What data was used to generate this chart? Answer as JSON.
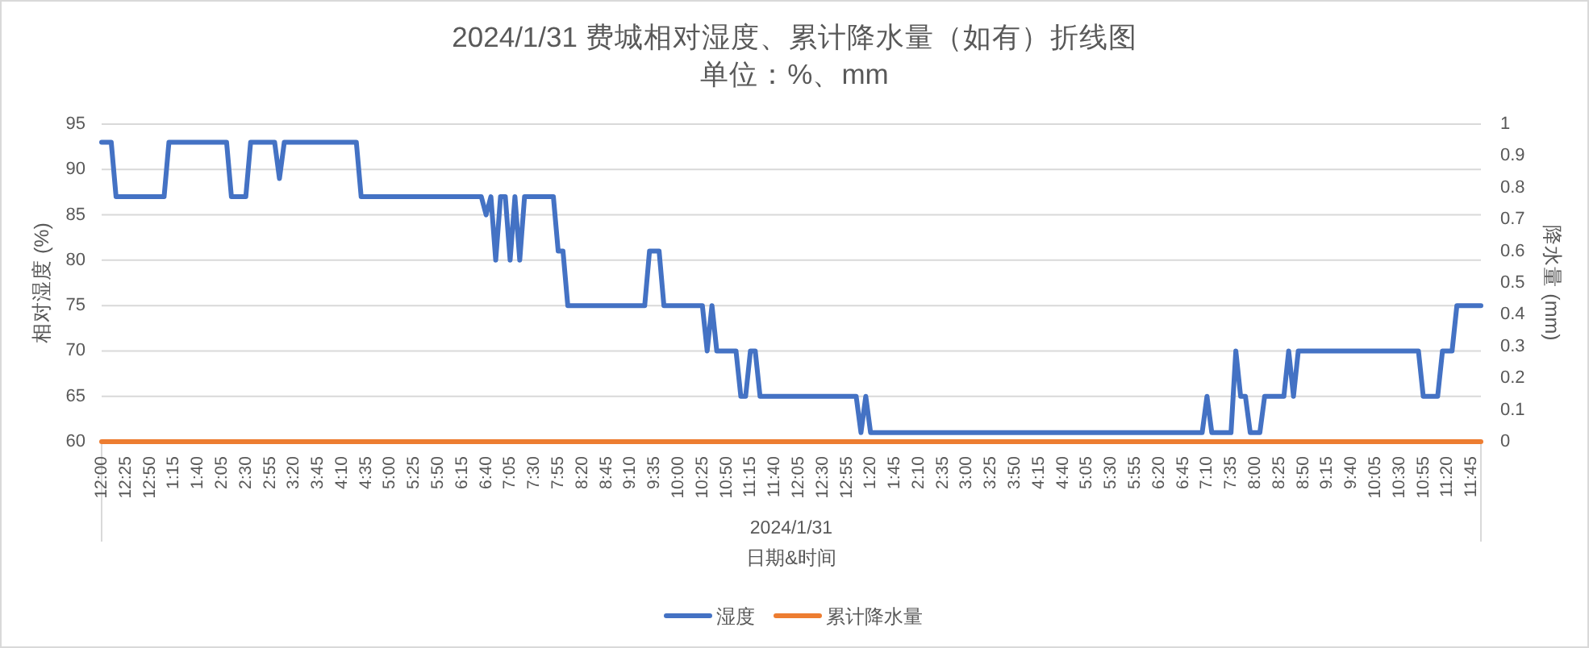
{
  "chart_data": {
    "type": "line",
    "title": "2024/1/31 费城相对湿度、累计降水量（如有）折线图",
    "subtitle": "单位：%、mm",
    "xlabel": "日期&时间",
    "ylabel": "相对湿度 (%)",
    "y2label": "降水量 (mm)",
    "annotations": [
      "2024/1/31"
    ],
    "categories": [
      "12:00",
      null,
      null,
      null,
      null,
      "12:25",
      null,
      null,
      null,
      null,
      "12:50",
      null,
      null,
      null,
      null,
      "1:15",
      null,
      null,
      null,
      null,
      "1:40",
      null,
      null,
      null,
      null,
      "2:05",
      null,
      null,
      null,
      null,
      "2:30",
      null,
      null,
      null,
      null,
      "2:55",
      null,
      null,
      null,
      null,
      "3:20",
      null,
      null,
      null,
      null,
      "3:45",
      null,
      null,
      null,
      null,
      "4:10",
      null,
      null,
      null,
      null,
      "4:35",
      null,
      null,
      null,
      null,
      "5:00",
      null,
      null,
      null,
      null,
      "5:25",
      null,
      null,
      null,
      null,
      "5:50",
      null,
      null,
      null,
      null,
      "6:15",
      null,
      null,
      null,
      null,
      "6:40",
      null,
      null,
      null,
      null,
      "7:05",
      null,
      null,
      null,
      null,
      "7:30",
      null,
      null,
      null,
      null,
      "7:55",
      null,
      null,
      null,
      null,
      "8:20",
      null,
      null,
      null,
      null,
      "8:45",
      null,
      null,
      null,
      null,
      "9:10",
      null,
      null,
      null,
      null,
      "9:35",
      null,
      null,
      null,
      null,
      "10:00",
      null,
      null,
      null,
      null,
      "10:25",
      null,
      null,
      null,
      null,
      "10:50",
      null,
      null,
      null,
      null,
      "11:15",
      null,
      null,
      null,
      null,
      "11:40",
      null,
      null,
      null,
      null,
      "12:05",
      null,
      null,
      null,
      null,
      "12:30",
      null,
      null,
      null,
      null,
      "12:55",
      null,
      null,
      null,
      null,
      "1:20",
      null,
      null,
      null,
      null,
      "1:45",
      null,
      null,
      null,
      null,
      "2:10",
      null,
      null,
      null,
      null,
      "2:35",
      null,
      null,
      null,
      null,
      "3:00",
      null,
      null,
      null,
      null,
      "3:25",
      null,
      null,
      null,
      null,
      "3:50",
      null,
      null,
      null,
      null,
      "4:15",
      null,
      null,
      null,
      null,
      "4:40",
      null,
      null,
      null,
      null,
      "5:05",
      null,
      null,
      null,
      null,
      "5:30",
      null,
      null,
      null,
      null,
      "5:55",
      null,
      null,
      null,
      null,
      "6:20",
      null,
      null,
      null,
      null,
      "6:45",
      null,
      null,
      null,
      null,
      "7:10",
      null,
      null,
      null,
      null,
      "7:35",
      null,
      null,
      null,
      null,
      "8:00",
      null,
      null,
      null,
      null,
      "8:25",
      null,
      null,
      null,
      null,
      "8:50",
      null,
      null,
      null,
      null,
      "9:15",
      null,
      null,
      null,
      null,
      "9:40",
      null,
      null,
      null,
      null,
      "10:05",
      null,
      null,
      null,
      null,
      "10:30",
      null,
      null,
      null,
      null,
      "10:55",
      null,
      null,
      null,
      null,
      "11:20",
      null,
      null,
      null,
      null,
      "11:45",
      null,
      null
    ],
    "ylim": [
      60,
      95
    ],
    "yticks": [
      60,
      65,
      70,
      75,
      80,
      85,
      90,
      95
    ],
    "y2lim": [
      0,
      1
    ],
    "y2ticks": [
      0,
      0.1,
      0.2,
      0.3,
      0.4,
      0.5,
      0.6,
      0.7,
      0.8,
      0.9,
      1
    ],
    "grid": "y",
    "legend": "bottom",
    "series": [
      {
        "name": "湿度",
        "color": "#4472c4",
        "values": [
          93,
          93,
          93,
          87,
          87,
          87,
          87,
          87,
          87,
          87,
          87,
          87,
          87,
          87,
          93,
          93,
          93,
          93,
          93,
          93,
          93,
          93,
          93,
          93,
          93,
          93,
          93,
          87,
          87,
          87,
          87,
          93,
          93,
          93,
          93,
          93,
          93,
          89,
          93,
          93,
          93,
          93,
          93,
          93,
          93,
          93,
          93,
          93,
          93,
          93,
          93,
          93,
          93,
          93,
          87,
          87,
          87,
          87,
          87,
          87,
          87,
          87,
          87,
          87,
          87,
          87,
          87,
          87,
          87,
          87,
          87,
          87,
          87,
          87,
          87,
          87,
          87,
          87,
          87,
          87,
          85,
          87,
          80,
          87,
          87,
          80,
          87,
          80,
          87,
          87,
          87,
          87,
          87,
          87,
          87,
          81,
          81,
          75,
          75,
          75,
          75,
          75,
          75,
          75,
          75,
          75,
          75,
          75,
          75,
          75,
          75,
          75,
          75,
          75,
          81,
          81,
          81,
          75,
          75,
          75,
          75,
          75,
          75,
          75,
          75,
          75,
          70,
          75,
          70,
          70,
          70,
          70,
          70,
          65,
          65,
          70,
          70,
          65,
          65,
          65,
          65,
          65,
          65,
          65,
          65,
          65,
          65,
          65,
          65,
          65,
          65,
          65,
          65,
          65,
          65,
          65,
          65,
          65,
          61,
          65,
          61,
          61,
          61,
          61,
          61,
          61,
          61,
          61,
          61,
          61,
          61,
          61,
          61,
          61,
          61,
          61,
          61,
          61,
          61,
          61,
          61,
          61,
          61,
          61,
          61,
          61,
          61,
          61,
          61,
          61,
          61,
          61,
          61,
          61,
          61,
          61,
          61,
          61,
          61,
          61,
          61,
          61,
          61,
          61,
          61,
          61,
          61,
          61,
          61,
          61,
          61,
          61,
          61,
          61,
          61,
          61,
          61,
          61,
          61,
          61,
          61,
          61,
          61,
          61,
          61,
          61,
          61,
          61,
          61,
          61,
          65,
          61,
          61,
          61,
          61,
          61,
          70,
          65,
          65,
          61,
          61,
          61,
          65,
          65,
          65,
          65,
          65,
          70,
          65,
          70,
          70,
          70,
          70,
          70,
          70,
          70,
          70,
          70,
          70,
          70,
          70,
          70,
          70,
          70,
          70,
          70,
          70,
          70,
          70,
          70,
          70,
          70,
          70,
          70,
          70,
          65,
          65,
          65,
          65,
          70,
          70,
          70,
          75,
          75,
          75,
          75,
          75,
          75
        ]
      },
      {
        "name": "累计降水量",
        "color": "#ed7d31",
        "axis": "y2",
        "values": [
          0,
          0,
          0,
          0,
          0,
          0,
          0,
          0,
          0,
          0,
          0,
          0,
          0,
          0,
          0,
          0,
          0,
          0,
          0,
          0,
          0,
          0,
          0,
          0,
          0,
          0,
          0,
          0,
          0,
          0,
          0,
          0,
          0,
          0,
          0,
          0,
          0,
          0,
          0,
          0,
          0,
          0,
          0,
          0,
          0,
          0,
          0,
          0,
          0,
          0,
          0,
          0,
          0,
          0,
          0,
          0,
          0,
          0,
          0,
          0,
          0,
          0,
          0,
          0,
          0,
          0,
          0,
          0,
          0,
          0,
          0,
          0,
          0,
          0,
          0,
          0,
          0,
          0,
          0,
          0,
          0,
          0,
          0,
          0,
          0,
          0,
          0,
          0,
          0,
          0,
          0,
          0,
          0,
          0,
          0,
          0,
          0,
          0,
          0,
          0,
          0,
          0,
          0,
          0,
          0,
          0,
          0,
          0,
          0,
          0,
          0,
          0,
          0,
          0,
          0,
          0,
          0,
          0,
          0,
          0,
          0,
          0,
          0,
          0,
          0,
          0,
          0,
          0,
          0,
          0,
          0,
          0,
          0,
          0,
          0,
          0,
          0,
          0,
          0,
          0,
          0,
          0,
          0,
          0,
          0,
          0,
          0,
          0,
          0,
          0,
          0,
          0,
          0,
          0,
          0,
          0,
          0,
          0,
          0,
          0,
          0,
          0,
          0,
          0,
          0,
          0,
          0,
          0,
          0,
          0,
          0,
          0,
          0,
          0,
          0,
          0,
          0,
          0,
          0,
          0,
          0,
          0,
          0,
          0,
          0,
          0,
          0,
          0,
          0,
          0,
          0,
          0,
          0,
          0,
          0,
          0,
          0,
          0,
          0,
          0,
          0,
          0,
          0,
          0,
          0,
          0,
          0,
          0,
          0,
          0,
          0,
          0,
          0,
          0,
          0,
          0,
          0,
          0,
          0,
          0,
          0,
          0,
          0,
          0,
          0,
          0,
          0,
          0,
          0,
          0,
          0,
          0,
          0,
          0,
          0,
          0,
          0,
          0,
          0,
          0,
          0,
          0,
          0,
          0,
          0,
          0,
          0,
          0,
          0,
          0,
          0,
          0,
          0,
          0,
          0,
          0,
          0,
          0,
          0,
          0,
          0,
          0,
          0,
          0,
          0,
          0,
          0,
          0,
          0,
          0,
          0,
          0,
          0,
          0,
          0,
          0,
          0,
          0,
          0,
          0,
          0,
          0,
          0,
          0,
          0,
          0,
          0,
          0
        ]
      }
    ]
  }
}
